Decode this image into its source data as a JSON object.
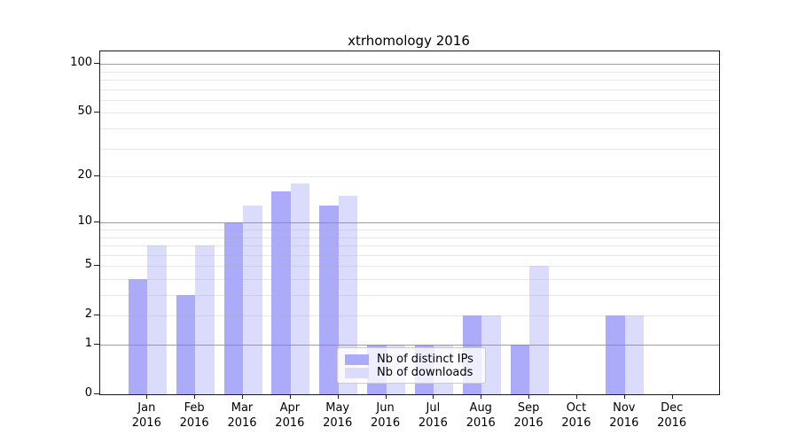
{
  "figure": {
    "title": "xtrhomology 2016",
    "background_color": "#ffffff"
  },
  "chart_data": {
    "type": "bar",
    "title": "xtrhomology 2016",
    "categories": [
      "Jan 2016",
      "Feb 2016",
      "Mar 2016",
      "Apr 2016",
      "May 2016",
      "Jun 2016",
      "Jul 2016",
      "Aug 2016",
      "Sep 2016",
      "Oct 2016",
      "Nov 2016",
      "Dec 2016"
    ],
    "series": [
      {
        "name": "Nb of distinct IPs",
        "color": "#ababfa",
        "values": [
          4,
          3,
          10,
          16,
          13,
          1,
          1,
          2,
          1,
          0,
          2,
          0
        ]
      },
      {
        "name": "Nb of downloads",
        "color": "#dbdbfb",
        "values": [
          7,
          7,
          13,
          18,
          15,
          1,
          1,
          2,
          5,
          0,
          2,
          0
        ]
      }
    ],
    "xlabel": "",
    "ylabel": "",
    "yscale": "log1p",
    "ylim": [
      0,
      118
    ],
    "ytick_labels": [
      "100",
      "50",
      "20",
      "10",
      "5",
      "2",
      "1",
      "0"
    ],
    "ytick_values": [
      100,
      50,
      20,
      10,
      5,
      2,
      1,
      0
    ],
    "major_grid_values": [
      1,
      10,
      100
    ],
    "minor_grid_values": [
      2,
      3,
      4,
      5,
      6,
      7,
      8,
      9,
      20,
      30,
      40,
      50,
      60,
      70,
      80,
      90
    ],
    "grid": "on",
    "legend_position": "lower center-right inside plot",
    "legend_entries": [
      "Nb of distinct IPs",
      "Nb of downloads"
    ]
  }
}
